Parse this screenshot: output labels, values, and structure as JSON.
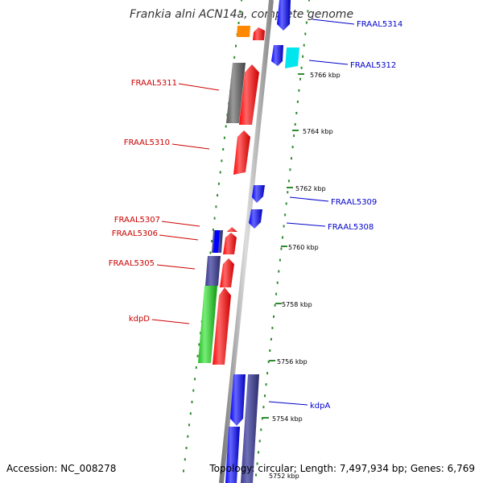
{
  "title": "Frankia alni ACN14a, complete genome",
  "accession": "Accession: NC_008278",
  "summary": "Topology: circular; Length: 7,497,934 bp; Genes: 6,769",
  "ticks": [
    "5766 kbp",
    "5764 kbp",
    "5762 kbp",
    "5760 kbp",
    "5758 kbp",
    "5756 kbp",
    "5754 kbp",
    "5752 kbp"
  ],
  "genes_left": [
    "FRAAL5311",
    "FRAAL5310",
    "FRAAL5307",
    "FRAAL5306",
    "FRAAL5305",
    "kdpD"
  ],
  "genes_right": [
    "FRAAL5314",
    "FRAAL5312",
    "FRAAL5309",
    "FRAAL5308",
    "kdpA"
  ],
  "colors": {
    "red": "#ff0000",
    "blue": "#0000ff",
    "navy": "#3a3a8c",
    "green": "#33cc33",
    "gray": "#666666",
    "orange": "#ff8800",
    "cyan": "#00e5ee",
    "dots": "#2e8b2e",
    "label_left": "#cc0000",
    "label_right": "#0000cc"
  }
}
